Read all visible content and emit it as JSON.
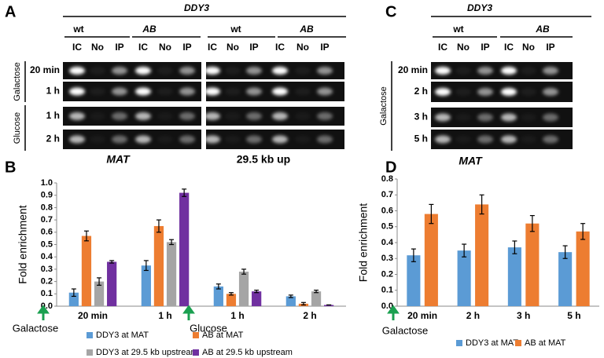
{
  "panels": {
    "A": {
      "letter": "A",
      "strain": "DDY3",
      "genotypes": [
        "wt",
        "AB",
        "wt",
        "AB"
      ],
      "lanes": [
        "IC",
        "No",
        "IP",
        "IC",
        "No",
        "IP",
        "IC",
        "No",
        "IP",
        "IC",
        "No",
        "IP"
      ],
      "rows": [
        "20 min",
        "1 h",
        "1 h",
        "2 h"
      ],
      "conditions": [
        "Galactose",
        "Glucose"
      ],
      "loci": [
        "MAT",
        "29.5 kb up"
      ]
    },
    "B": {
      "letter": "B"
    },
    "C": {
      "letter": "C",
      "strain": "DDY3",
      "genotypes": [
        "wt",
        "AB"
      ],
      "lanes": [
        "IC",
        "No",
        "IP",
        "IC",
        "No",
        "IP"
      ],
      "rows": [
        "20 min",
        "2 h",
        "3 h",
        "5 h"
      ],
      "conditions": [
        "Galactose"
      ],
      "loci": [
        "MAT"
      ]
    },
    "D": {
      "letter": "D"
    }
  },
  "chart_data": [
    {
      "type": "bar",
      "ylabel": "Fold enrichment",
      "categories": [
        "20 min",
        "1 h",
        "1 h",
        "2 h"
      ],
      "annotations": [
        "Galactose",
        "Glucose"
      ],
      "ylim": [
        0,
        1
      ],
      "yticks": [
        {
          "value": 0,
          "label": "0.0"
        },
        0.1,
        0.2,
        0.3,
        0.4,
        0.5,
        0.6,
        0.7,
        0.8,
        0.9,
        {
          "value": 1,
          "label": "1.0"
        }
      ],
      "series": [
        {
          "name": "DDY3 at MAT",
          "color": "#5b9bd5",
          "values": [
            0.11,
            0.33,
            0.16,
            0.08
          ],
          "errors": [
            0.03,
            0.04,
            0.02,
            0.01
          ]
        },
        {
          "name": "AB at MAT",
          "color": "#ed7d31",
          "values": [
            0.57,
            0.65,
            0.1,
            0.02
          ],
          "errors": [
            0.04,
            0.05,
            0.01,
            0.01
          ]
        },
        {
          "name": "DDY3 at 29.5 kb upstream",
          "color": "#a5a5a5",
          "values": [
            0.2,
            0.52,
            0.28,
            0.12
          ],
          "errors": [
            0.03,
            0.02,
            0.02,
            0.01
          ]
        },
        {
          "name": "AB at 29.5 kb upstream",
          "color": "#7030a0",
          "values": [
            0.36,
            0.92,
            0.12,
            0.01
          ],
          "errors": [
            0.01,
            0.03,
            0.01,
            0
          ]
        }
      ]
    },
    {
      "type": "bar",
      "ylabel": "Fold enrichment",
      "categories": [
        "20 min",
        "2 h",
        "3 h",
        "5 h"
      ],
      "annotations": [
        "Galactose"
      ],
      "ylim": [
        0,
        0.8
      ],
      "yticks": [
        {
          "value": 0,
          "label": "0.0"
        },
        0.1,
        0.2,
        0.3,
        0.4,
        0.5,
        0.6,
        0.7,
        0.8
      ],
      "series": [
        {
          "name": "DDY3 at MAT",
          "color": "#5b9bd5",
          "values": [
            0.32,
            0.35,
            0.37,
            0.34
          ],
          "errors": [
            0.04,
            0.04,
            0.04,
            0.04
          ]
        },
        {
          "name": "AB at MAT",
          "color": "#ed7d31",
          "values": [
            0.58,
            0.64,
            0.52,
            0.47
          ],
          "errors": [
            0.06,
            0.06,
            0.05,
            0.05
          ]
        }
      ]
    }
  ]
}
